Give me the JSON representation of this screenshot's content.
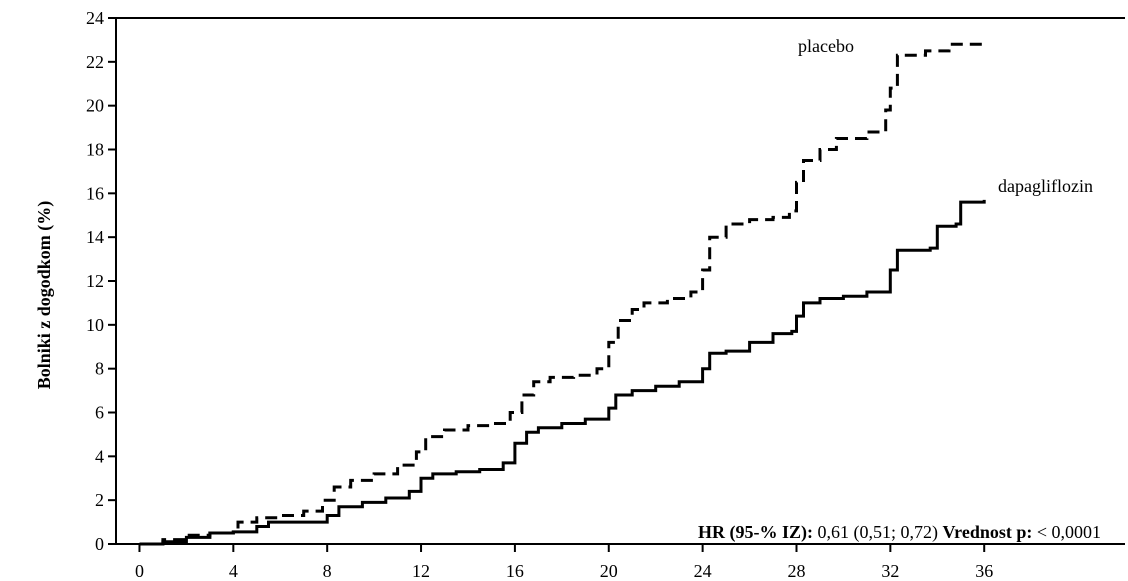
{
  "chart_data": {
    "type": "line",
    "ylabel": "Bolniki z dogodkom (%)",
    "xlabel": "",
    "xlim": [
      -1,
      42
    ],
    "ylim": [
      0,
      24
    ],
    "x_ticks": [
      0,
      4,
      8,
      12,
      16,
      20,
      24,
      28,
      32,
      36
    ],
    "y_ticks": [
      0,
      2,
      4,
      6,
      8,
      10,
      12,
      14,
      16,
      18,
      20,
      22,
      24
    ],
    "grid": false,
    "series": [
      {
        "name": "placebo",
        "style": "dashed",
        "color": "#000000",
        "points": [
          [
            0,
            0
          ],
          [
            1,
            0.2
          ],
          [
            2,
            0.4
          ],
          [
            3,
            0.5
          ],
          [
            4,
            0.7
          ],
          [
            4.2,
            1.0
          ],
          [
            5,
            1.2
          ],
          [
            6,
            1.3
          ],
          [
            7,
            1.5
          ],
          [
            7.8,
            2.0
          ],
          [
            8.3,
            2.6
          ],
          [
            9,
            2.9
          ],
          [
            10,
            3.2
          ],
          [
            11,
            3.6
          ],
          [
            11.8,
            4.2
          ],
          [
            12.2,
            4.9
          ],
          [
            13,
            5.2
          ],
          [
            14,
            5.4
          ],
          [
            15,
            5.5
          ],
          [
            15.8,
            6.0
          ],
          [
            16.3,
            6.8
          ],
          [
            16.8,
            7.4
          ],
          [
            17.5,
            7.6
          ],
          [
            18.5,
            7.7
          ],
          [
            19.5,
            8.0
          ],
          [
            20,
            9.2
          ],
          [
            20.4,
            10.2
          ],
          [
            21,
            10.7
          ],
          [
            21.5,
            11.0
          ],
          [
            22.5,
            11.2
          ],
          [
            23.5,
            11.5
          ],
          [
            24,
            12.5
          ],
          [
            24.3,
            14.0
          ],
          [
            25,
            14.6
          ],
          [
            26,
            14.8
          ],
          [
            27,
            14.9
          ],
          [
            27.7,
            15.2
          ],
          [
            28,
            16.5
          ],
          [
            28.3,
            17.5
          ],
          [
            29,
            18.0
          ],
          [
            29.7,
            18.5
          ],
          [
            31,
            18.8
          ],
          [
            31.8,
            19.8
          ],
          [
            32,
            20.8
          ],
          [
            32.3,
            22.3
          ],
          [
            33.5,
            22.5
          ],
          [
            34.5,
            22.8
          ],
          [
            36,
            22.8
          ]
        ]
      },
      {
        "name": "dapagliflozin",
        "style": "solid",
        "color": "#000000",
        "points": [
          [
            0,
            0
          ],
          [
            1,
            0.1
          ],
          [
            2,
            0.3
          ],
          [
            3,
            0.5
          ],
          [
            4,
            0.55
          ],
          [
            5,
            0.8
          ],
          [
            5.5,
            1.0
          ],
          [
            7.5,
            1.0
          ],
          [
            8,
            1.3
          ],
          [
            8.5,
            1.7
          ],
          [
            9.5,
            1.9
          ],
          [
            10.5,
            2.1
          ],
          [
            11.5,
            2.4
          ],
          [
            12,
            3.0
          ],
          [
            12.5,
            3.2
          ],
          [
            13.5,
            3.3
          ],
          [
            14.5,
            3.4
          ],
          [
            15.5,
            3.7
          ],
          [
            16,
            4.6
          ],
          [
            16.5,
            5.1
          ],
          [
            17,
            5.3
          ],
          [
            18,
            5.5
          ],
          [
            19,
            5.7
          ],
          [
            20,
            6.2
          ],
          [
            20.3,
            6.8
          ],
          [
            21,
            7.0
          ],
          [
            22,
            7.2
          ],
          [
            23,
            7.4
          ],
          [
            24,
            8.0
          ],
          [
            24.3,
            8.7
          ],
          [
            25,
            8.8
          ],
          [
            26,
            9.2
          ],
          [
            27,
            9.6
          ],
          [
            27.8,
            9.7
          ],
          [
            28,
            10.4
          ],
          [
            28.3,
            11.0
          ],
          [
            29,
            11.2
          ],
          [
            30,
            11.3
          ],
          [
            31,
            11.5
          ],
          [
            32,
            12.5
          ],
          [
            32.3,
            13.4
          ],
          [
            33.7,
            13.5
          ],
          [
            34,
            14.5
          ],
          [
            34.8,
            14.6
          ],
          [
            35,
            15.6
          ],
          [
            36,
            15.7
          ]
        ]
      }
    ],
    "annotation": {
      "hr_label": "HR (95-% IZ):",
      "hr_value": "0,61 (0,51; 0,72)",
      "p_label": "Vrednost p:",
      "p_value": "< 0,0001"
    }
  }
}
